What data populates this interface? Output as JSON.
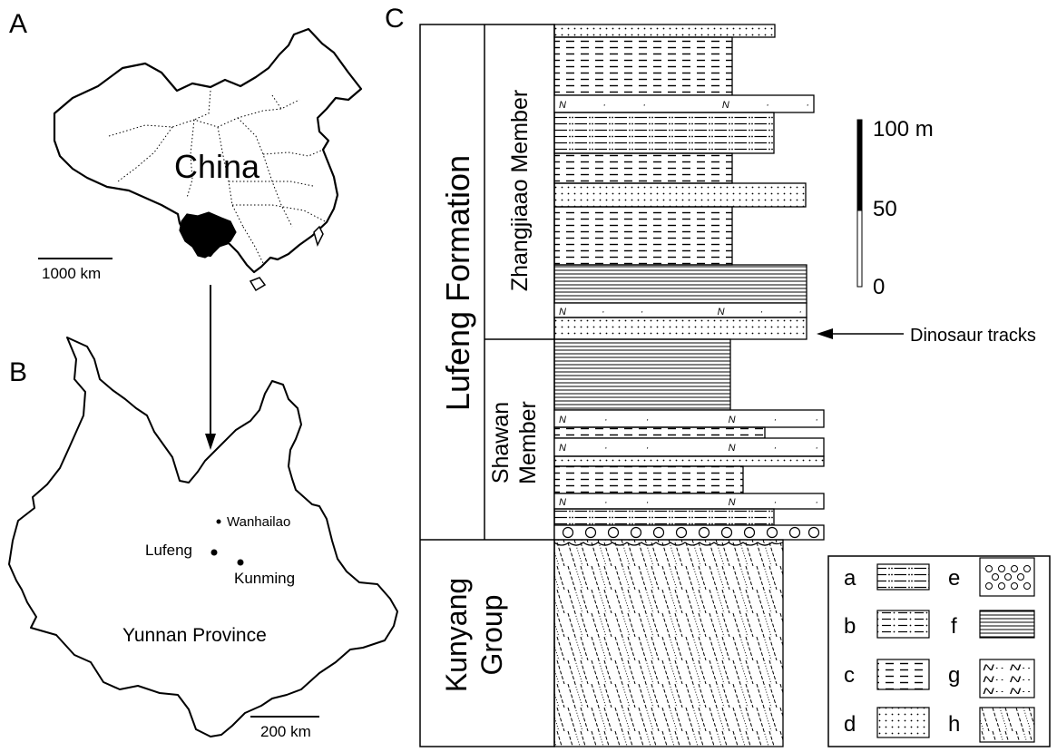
{
  "panels": {
    "a": {
      "letter": "A",
      "country_label": "China",
      "scale_label": "1000 km"
    },
    "b": {
      "letter": "B",
      "province_label": "Yunnan Province",
      "scale_label": "200 km",
      "places": [
        {
          "name": "Wanhailao"
        },
        {
          "name": "Lufeng"
        },
        {
          "name": "Kunming"
        }
      ]
    },
    "c": {
      "letter": "C",
      "formation_label": "Lufeng Formation",
      "group_label_line1": "Kunyang",
      "group_label_line2": "Group",
      "member_upper": "Zhangjiaao Member",
      "member_lower_line1": "Shawan",
      "member_lower_line2": "Member",
      "scale_bar": {
        "labels": [
          "100 m",
          "50",
          "0"
        ],
        "max_m": 100
      },
      "tracks_annotation": "Dinosaur tracks",
      "legend": [
        {
          "key": "a",
          "pattern": "dash-dot-dot"
        },
        {
          "key": "b",
          "pattern": "dash-dot"
        },
        {
          "key": "c",
          "pattern": "dashed"
        },
        {
          "key": "d",
          "pattern": "dotted"
        },
        {
          "key": "e",
          "pattern": "circles"
        },
        {
          "key": "f",
          "pattern": "horizontal-lines"
        },
        {
          "key": "g",
          "pattern": "N-dots",
          "sample_text": "N·· N··"
        },
        {
          "key": "h",
          "pattern": "diagonal-dashed"
        }
      ]
    }
  }
}
